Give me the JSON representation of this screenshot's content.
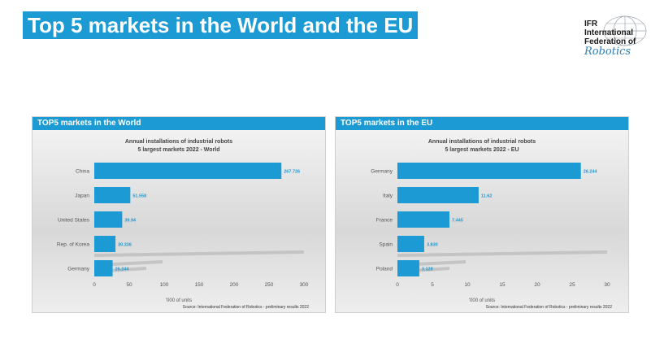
{
  "slide_title": "Top 5 markets in the World and the EU",
  "logo": {
    "line1": "IFR",
    "line2": "International",
    "line3": "Federation of",
    "script": "Robotics"
  },
  "panels": [
    {
      "header": "TOP5 markets in the World",
      "footer": "Source: International Federation of Robotics - preliminary results 2022"
    },
    {
      "header": "TOP5 markets in the EU",
      "footer": "Source: International Federation of Robotics - preliminary results 2022"
    }
  ],
  "chart_data": [
    {
      "type": "bar",
      "orientation": "horizontal",
      "title": "Annual installations of industrial robots",
      "subtitle": "5 largest markets 2022 - World",
      "categories": [
        "China",
        "Japan",
        "United States",
        "Rep. of Korea",
        "Germany"
      ],
      "values": [
        267.726,
        51.558,
        39.94,
        30.336,
        26.244
      ],
      "data_labels": [
        "267.726",
        "51.558",
        "39.94",
        "30.336",
        "26.244"
      ],
      "xlim": [
        0,
        300
      ],
      "xticks": [
        0,
        50,
        100,
        150,
        200,
        250,
        300
      ],
      "xlabel": "'000 of units",
      "bar_color": "#1b9ad4"
    },
    {
      "type": "bar",
      "orientation": "horizontal",
      "title": "Annual installations of industrial robots",
      "subtitle": "5 largest markets 2022 - EU",
      "categories": [
        "Germany",
        "Italy",
        "France",
        "Spain",
        "Poland"
      ],
      "values": [
        26.244,
        11.62,
        7.445,
        3.83,
        3.128
      ],
      "data_labels": [
        "26.244",
        "11.62",
        "7.445",
        "3.830",
        "3.128"
      ],
      "xlim": [
        0,
        30
      ],
      "xticks": [
        0,
        5,
        10,
        15,
        20,
        25,
        30
      ],
      "xlabel": "'000 of units",
      "bar_color": "#1b9ad4"
    }
  ]
}
